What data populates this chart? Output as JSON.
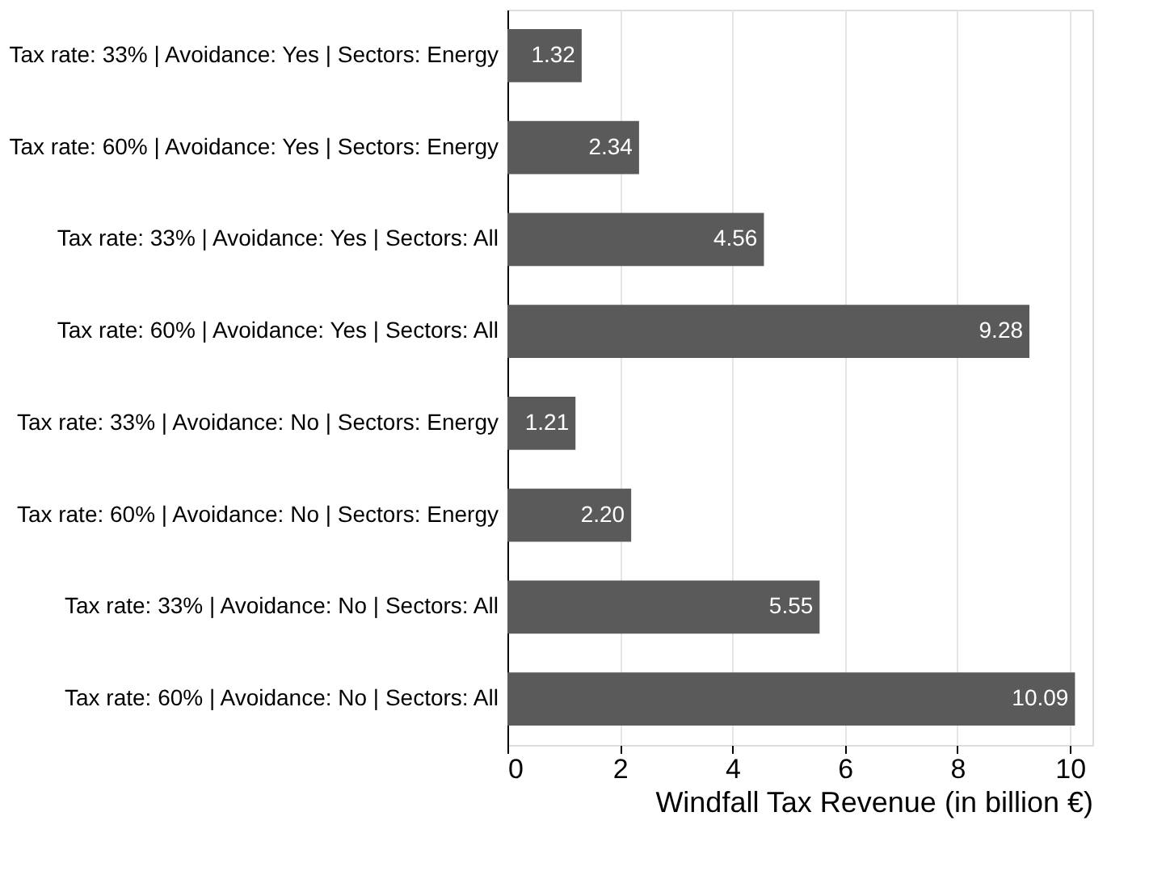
{
  "chart_data": {
    "type": "bar",
    "orientation": "horizontal",
    "xlabel": "Windfall Tax Revenue (in billion €)",
    "categories": [
      "Tax rate: 33% | Avoidance: Yes | Sectors: Energy",
      "Tax rate: 60% | Avoidance: Yes | Sectors: Energy",
      "Tax rate: 33% | Avoidance: Yes | Sectors: All",
      "Tax rate: 60% | Avoidance: Yes | Sectors: All",
      "Tax rate: 33% | Avoidance: No  | Sectors: Energy",
      "Tax rate: 60% | Avoidance: No  | Sectors: Energy",
      "Tax rate: 33% | Avoidance: No  | Sectors: All",
      "Tax rate: 60% | Avoidance: No  | Sectors: All"
    ],
    "values": [
      1.32,
      2.34,
      4.56,
      9.28,
      1.21,
      2.2,
      5.55,
      10.09
    ],
    "value_labels": [
      "1.32",
      "2.34",
      "4.56",
      "9.28",
      "1.21",
      "2.20",
      "5.55",
      "10.09"
    ],
    "color": "#5a5a5a",
    "xlim": [
      0,
      10.4
    ],
    "xticks": [
      0,
      2,
      4,
      6,
      8,
      10
    ],
    "grid": "x"
  }
}
